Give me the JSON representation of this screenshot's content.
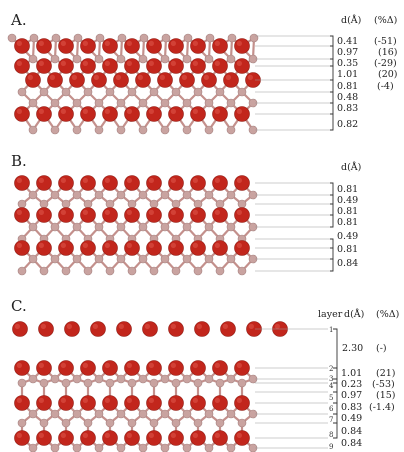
{
  "colors": {
    "oxygen": "#c2261c",
    "metal": "#c9a3a0",
    "bond": "#c4908c"
  },
  "panels": [
    {
      "label": "A.",
      "header": {
        "d": "d(Å)",
        "pct": "(%Δ)"
      },
      "d_values": [
        "0.41",
        "0.97",
        "0.35",
        "1.01",
        "0.81",
        "0.48",
        "0.83",
        "0.82"
      ],
      "pct_values": [
        "(-51)",
        "(16)",
        "(-29)",
        "(20)",
        "(-4)",
        "",
        "",
        ""
      ]
    },
    {
      "label": "B.",
      "header": {
        "d": "d(Å)",
        "pct": ""
      },
      "d_values": [
        "0.81",
        "0.49",
        "0.81",
        "0.81",
        "0.49",
        "0.81",
        "0.84"
      ],
      "pct_values": []
    },
    {
      "label": "C.",
      "header": {
        "layer": "layer",
        "d": "d(Å)",
        "pct": "(%Δ)"
      },
      "layer_labels": [
        "1",
        "2",
        "3",
        "4",
        "5",
        "6",
        "7",
        "8",
        "9"
      ],
      "d_values": [
        "2.30",
        "1.01",
        "0.23",
        "0.97",
        "0.83",
        "0.49",
        "0.84",
        "0.84"
      ],
      "pct_values": [
        "(-)",
        "(21)",
        "(-53)",
        "(15)",
        "(-1.4)",
        "",
        "",
        ""
      ]
    }
  ]
}
